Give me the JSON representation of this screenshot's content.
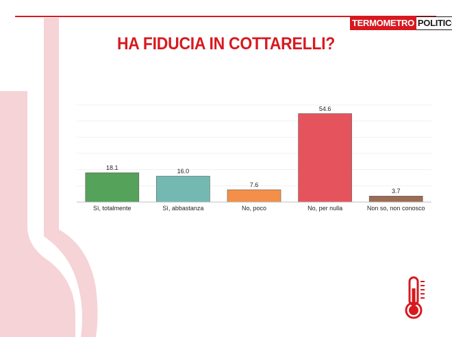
{
  "header": {
    "logo_left": "TERMOMETRO",
    "logo_right": "POLITICO",
    "title": "HA FIDUCIA IN COTTARELLI?"
  },
  "colors": {
    "accent": "#d7191f",
    "decoration": "#f6d3d6"
  },
  "chart_data": {
    "type": "bar",
    "title": "HA FIDUCIA IN COTTARELLI?",
    "xlabel": "",
    "ylabel": "",
    "ylim": [
      0,
      60
    ],
    "grid": true,
    "legend": "none",
    "categories": [
      "Sì, totalmente",
      "Sì, abbastanza",
      "No, poco",
      "No, per nulla",
      "Non so, non conosco"
    ],
    "values": [
      18.1,
      16.0,
      7.6,
      54.6,
      3.7
    ],
    "value_labels": [
      "18.1",
      "16.0",
      "7.6",
      "54.6",
      "3.7"
    ],
    "bar_colors": [
      "#55a25b",
      "#73b9b1",
      "#f38f48",
      "#e5545d",
      "#9c6c55"
    ]
  },
  "icons": {
    "corner_icon": "thermometer-icon"
  }
}
